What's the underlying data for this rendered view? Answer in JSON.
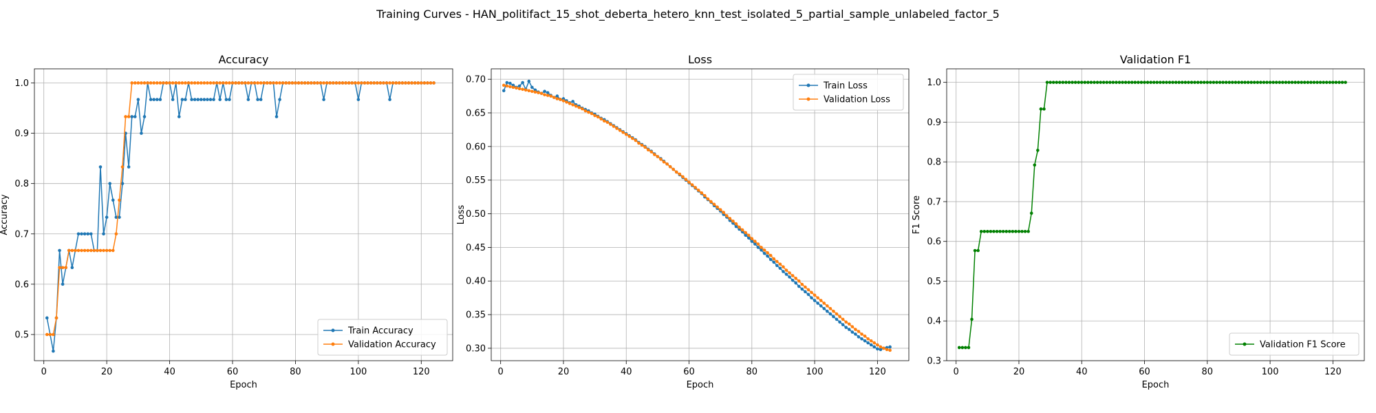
{
  "suptitle": "Training Curves - HAN_politifact_15_shot_deberta_hetero_knn_test_isolated_5_partial_sample_unlabeled_factor_5",
  "colors": {
    "blue": "#1f77b4",
    "orange": "#ff7f0e",
    "green": "#008000",
    "grid": "#b0b0b0"
  },
  "chart_data": [
    {
      "type": "line",
      "title": "Accuracy",
      "xlabel": "Epoch",
      "ylabel": "Accuracy",
      "xlim": [
        -3,
        130
      ],
      "ylim": [
        0.448,
        1.028
      ],
      "xticks": [
        0,
        20,
        40,
        60,
        80,
        100,
        120
      ],
      "yticks": [
        0.5,
        0.6,
        0.7,
        0.8,
        0.9,
        1.0
      ],
      "ytick_labels": [
        "0.5",
        "0.6",
        "0.7",
        "0.8",
        "0.9",
        "1.0"
      ],
      "grid": true,
      "legend_position": "lower-right",
      "series": [
        {
          "name": "Train Accuracy",
          "color": "#1f77b4",
          "values": [
            0.533,
            0.5,
            0.467,
            0.533,
            0.667,
            0.6,
            0.633,
            0.667,
            0.633,
            0.667,
            0.7,
            0.7,
            0.7,
            0.7,
            0.7,
            0.667,
            0.667,
            0.833,
            0.7,
            0.733,
            0.8,
            0.767,
            0.733,
            0.733,
            0.8,
            0.9,
            0.833,
            0.933,
            0.933,
            0.967,
            0.9,
            0.933,
            1.0,
            0.967,
            0.967,
            0.967,
            0.967,
            1.0,
            1.0,
            1.0,
            0.967,
            1.0,
            0.933,
            0.967,
            0.967,
            1.0,
            0.967,
            0.967,
            0.967,
            0.967,
            0.967,
            0.967,
            0.967,
            0.967,
            1.0,
            0.967,
            1.0,
            0.967,
            0.967,
            1.0,
            1.0,
            1.0,
            1.0,
            1.0,
            0.967,
            1.0,
            1.0,
            0.967,
            0.967,
            1.0,
            1.0,
            1.0,
            1.0,
            0.933,
            0.967,
            1.0,
            1.0,
            1.0,
            1.0,
            1.0,
            1.0,
            1.0,
            1.0,
            1.0,
            1.0,
            1.0,
            1.0,
            1.0,
            0.967,
            1.0,
            1.0,
            1.0,
            1.0,
            1.0,
            1.0,
            1.0,
            1.0,
            1.0,
            1.0,
            0.967,
            1.0,
            1.0,
            1.0,
            1.0,
            1.0,
            1.0,
            1.0,
            1.0,
            1.0,
            0.967,
            1.0,
            1.0,
            1.0,
            1.0,
            1.0,
            1.0,
            1.0,
            1.0,
            1.0,
            1.0,
            1.0,
            1.0,
            1.0,
            1.0
          ]
        },
        {
          "name": "Validation Accuracy",
          "color": "#ff7f0e",
          "values": [
            0.5,
            0.5,
            0.5,
            0.533,
            0.633,
            0.633,
            0.633,
            0.667,
            0.667,
            0.667,
            0.667,
            0.667,
            0.667,
            0.667,
            0.667,
            0.667,
            0.667,
            0.667,
            0.667,
            0.667,
            0.667,
            0.667,
            0.7,
            0.767,
            0.833,
            0.933,
            0.933,
            1.0,
            1.0,
            1.0,
            1.0,
            1.0,
            1.0,
            1.0,
            1.0,
            1.0,
            1.0,
            1.0,
            1.0,
            1.0,
            1.0,
            1.0,
            1.0,
            1.0,
            1.0,
            1.0,
            1.0,
            1.0,
            1.0,
            1.0,
            1.0,
            1.0,
            1.0,
            1.0,
            1.0,
            1.0,
            1.0,
            1.0,
            1.0,
            1.0,
            1.0,
            1.0,
            1.0,
            1.0,
            1.0,
            1.0,
            1.0,
            1.0,
            1.0,
            1.0,
            1.0,
            1.0,
            1.0,
            1.0,
            1.0,
            1.0,
            1.0,
            1.0,
            1.0,
            1.0,
            1.0,
            1.0,
            1.0,
            1.0,
            1.0,
            1.0,
            1.0,
            1.0,
            1.0,
            1.0,
            1.0,
            1.0,
            1.0,
            1.0,
            1.0,
            1.0,
            1.0,
            1.0,
            1.0,
            1.0,
            1.0,
            1.0,
            1.0,
            1.0,
            1.0,
            1.0,
            1.0,
            1.0,
            1.0,
            1.0,
            1.0,
            1.0,
            1.0,
            1.0,
            1.0,
            1.0,
            1.0,
            1.0,
            1.0,
            1.0,
            1.0,
            1.0,
            1.0,
            1.0
          ]
        }
      ]
    },
    {
      "type": "line",
      "title": "Loss",
      "xlabel": "Epoch",
      "ylabel": "Loss",
      "xlim": [
        -3,
        130
      ],
      "ylim": [
        0.2815,
        0.7155
      ],
      "xticks": [
        0,
        20,
        40,
        60,
        80,
        100,
        120
      ],
      "yticks": [
        0.3,
        0.35,
        0.4,
        0.45,
        0.5,
        0.55,
        0.6,
        0.65,
        0.7
      ],
      "ytick_labels": [
        "0.30",
        "0.35",
        "0.40",
        "0.45",
        "0.50",
        "0.55",
        "0.60",
        "0.65",
        "0.70"
      ],
      "grid": true,
      "legend_position": "upper-right",
      "series": [
        {
          "name": "Train Loss",
          "color": "#1f77b4",
          "values": [
            0.683,
            0.695,
            0.694,
            0.691,
            0.688,
            0.69,
            0.695,
            0.685,
            0.697,
            0.688,
            0.684,
            0.681,
            0.679,
            0.682,
            0.68,
            0.676,
            0.673,
            0.675,
            0.67,
            0.671,
            0.668,
            0.665,
            0.667,
            0.662,
            0.66,
            0.657,
            0.655,
            0.653,
            0.65,
            0.648,
            0.645,
            0.642,
            0.64,
            0.637,
            0.634,
            0.631,
            0.628,
            0.625,
            0.622,
            0.619,
            0.616,
            0.613,
            0.61,
            0.606,
            0.603,
            0.6,
            0.596,
            0.593,
            0.589,
            0.585,
            0.582,
            0.578,
            0.574,
            0.57,
            0.566,
            0.562,
            0.558,
            0.554,
            0.55,
            0.546,
            0.542,
            0.538,
            0.534,
            0.53,
            0.525,
            0.521,
            0.517,
            0.512,
            0.508,
            0.504,
            0.499,
            0.495,
            0.49,
            0.486,
            0.481,
            0.477,
            0.473,
            0.468,
            0.464,
            0.459,
            0.455,
            0.45,
            0.446,
            0.441,
            0.437,
            0.432,
            0.428,
            0.423,
            0.419,
            0.414,
            0.41,
            0.406,
            0.401,
            0.397,
            0.392,
            0.388,
            0.384,
            0.38,
            0.375,
            0.371,
            0.367,
            0.363,
            0.359,
            0.355,
            0.351,
            0.347,
            0.343,
            0.339,
            0.335,
            0.331,
            0.328,
            0.324,
            0.321,
            0.317,
            0.314,
            0.311,
            0.308,
            0.305,
            0.302,
            0.299,
            0.298,
            0.3,
            0.301,
            0.302
          ]
        },
        {
          "name": "Validation Loss",
          "color": "#ff7f0e",
          "values": [
            0.691,
            0.69,
            0.689,
            0.688,
            0.687,
            0.686,
            0.685,
            0.684,
            0.683,
            0.682,
            0.681,
            0.68,
            0.679,
            0.677,
            0.676,
            0.675,
            0.673,
            0.671,
            0.67,
            0.668,
            0.666,
            0.664,
            0.662,
            0.66,
            0.658,
            0.656,
            0.653,
            0.651,
            0.649,
            0.646,
            0.644,
            0.641,
            0.638,
            0.636,
            0.633,
            0.63,
            0.627,
            0.624,
            0.621,
            0.618,
            0.615,
            0.612,
            0.609,
            0.605,
            0.602,
            0.599,
            0.595,
            0.592,
            0.588,
            0.585,
            0.581,
            0.577,
            0.574,
            0.57,
            0.566,
            0.562,
            0.559,
            0.555,
            0.551,
            0.547,
            0.543,
            0.539,
            0.535,
            0.531,
            0.527,
            0.522,
            0.518,
            0.514,
            0.51,
            0.506,
            0.502,
            0.497,
            0.493,
            0.489,
            0.485,
            0.48,
            0.476,
            0.472,
            0.468,
            0.463,
            0.459,
            0.455,
            0.45,
            0.446,
            0.442,
            0.438,
            0.433,
            0.429,
            0.425,
            0.421,
            0.416,
            0.412,
            0.408,
            0.404,
            0.4,
            0.395,
            0.391,
            0.387,
            0.383,
            0.379,
            0.375,
            0.371,
            0.367,
            0.363,
            0.359,
            0.355,
            0.351,
            0.347,
            0.343,
            0.339,
            0.336,
            0.332,
            0.328,
            0.325,
            0.321,
            0.318,
            0.314,
            0.311,
            0.308,
            0.305,
            0.302,
            0.3,
            0.298,
            0.297
          ]
        }
      ]
    },
    {
      "type": "line",
      "title": "Validation F1",
      "xlabel": "Epoch",
      "ylabel": "F1 Score",
      "xlim": [
        -3,
        130
      ],
      "ylim": [
        0.3,
        1.034
      ],
      "xticks": [
        0,
        20,
        40,
        60,
        80,
        100,
        120
      ],
      "yticks": [
        0.3,
        0.4,
        0.5,
        0.6,
        0.7,
        0.8,
        0.9,
        1.0
      ],
      "ytick_labels": [
        "0.3",
        "0.4",
        "0.5",
        "0.6",
        "0.7",
        "0.8",
        "0.9",
        "1.0"
      ],
      "grid": true,
      "legend_position": "lower-right",
      "series": [
        {
          "name": "Validation F1 Score",
          "color": "#008000",
          "values": [
            0.333,
            0.333,
            0.333,
            0.333,
            0.404,
            0.577,
            0.577,
            0.625,
            0.625,
            0.625,
            0.625,
            0.625,
            0.625,
            0.625,
            0.625,
            0.625,
            0.625,
            0.625,
            0.625,
            0.625,
            0.625,
            0.625,
            0.625,
            0.671,
            0.792,
            0.829,
            0.933,
            0.933,
            1.0,
            1.0,
            1.0,
            1.0,
            1.0,
            1.0,
            1.0,
            1.0,
            1.0,
            1.0,
            1.0,
            1.0,
            1.0,
            1.0,
            1.0,
            1.0,
            1.0,
            1.0,
            1.0,
            1.0,
            1.0,
            1.0,
            1.0,
            1.0,
            1.0,
            1.0,
            1.0,
            1.0,
            1.0,
            1.0,
            1.0,
            1.0,
            1.0,
            1.0,
            1.0,
            1.0,
            1.0,
            1.0,
            1.0,
            1.0,
            1.0,
            1.0,
            1.0,
            1.0,
            1.0,
            1.0,
            1.0,
            1.0,
            1.0,
            1.0,
            1.0,
            1.0,
            1.0,
            1.0,
            1.0,
            1.0,
            1.0,
            1.0,
            1.0,
            1.0,
            1.0,
            1.0,
            1.0,
            1.0,
            1.0,
            1.0,
            1.0,
            1.0,
            1.0,
            1.0,
            1.0,
            1.0,
            1.0,
            1.0,
            1.0,
            1.0,
            1.0,
            1.0,
            1.0,
            1.0,
            1.0,
            1.0,
            1.0,
            1.0,
            1.0,
            1.0,
            1.0,
            1.0,
            1.0,
            1.0,
            1.0,
            1.0,
            1.0,
            1.0,
            1.0,
            1.0
          ]
        }
      ]
    }
  ]
}
